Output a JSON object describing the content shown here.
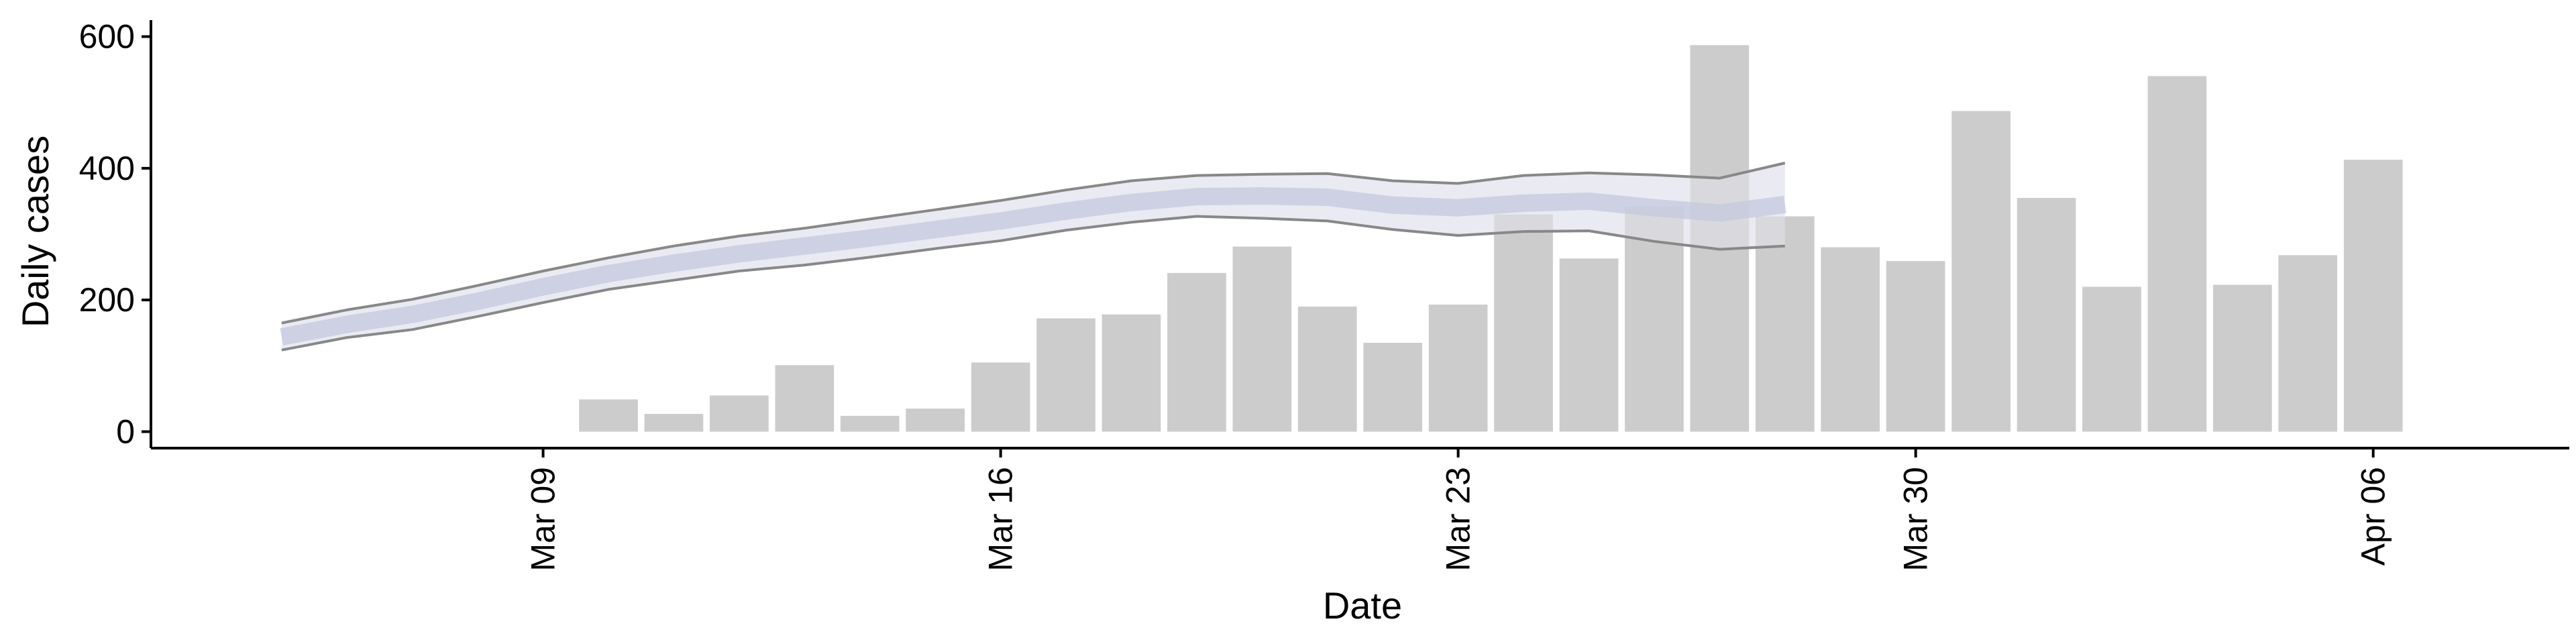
{
  "chart_data": {
    "type": "bar",
    "title": "",
    "xlabel": "Date",
    "ylabel": "Daily cases",
    "x_axis": "date",
    "xlim": [
      "2025-03-03",
      "2025-04-09"
    ],
    "ylim": [
      -25,
      625
    ],
    "y_ticks": [
      0,
      200,
      400,
      600
    ],
    "x_ticks": [
      {
        "date": "2025-03-09",
        "label": "Mar 09"
      },
      {
        "date": "2025-03-16",
        "label": "Mar 16"
      },
      {
        "date": "2025-03-23",
        "label": "Mar 23"
      },
      {
        "date": "2025-03-30",
        "label": "Mar 30"
      },
      {
        "date": "2025-04-06",
        "label": "Apr 06"
      }
    ],
    "grid": false,
    "legend": "none",
    "colors": {
      "bars": "#cccccc",
      "band": "#e8e9f2",
      "band_bounds": "#888888",
      "mid_line": "#c3c8dd",
      "axis": "#000000"
    },
    "bars": {
      "name": "",
      "x": [
        "2025-03-10",
        "2025-03-11",
        "2025-03-12",
        "2025-03-13",
        "2025-03-14",
        "2025-03-15",
        "2025-03-16",
        "2025-03-17",
        "2025-03-18",
        "2025-03-19",
        "2025-03-20",
        "2025-03-21",
        "2025-03-22",
        "2025-03-23",
        "2025-03-24",
        "2025-03-25",
        "2025-03-26",
        "2025-03-27",
        "2025-03-28",
        "2025-03-29",
        "2025-03-30",
        "2025-03-31",
        "2025-04-01",
        "2025-04-02",
        "2025-04-03",
        "2025-04-04",
        "2025-04-05",
        "2025-04-06"
      ],
      "values": [
        49,
        27,
        55,
        101,
        24,
        35,
        105,
        172,
        178,
        241,
        281,
        190,
        135,
        193,
        330,
        263,
        342,
        587,
        327,
        280,
        259,
        487,
        355,
        220,
        540,
        223,
        268,
        413
      ]
    },
    "band": {
      "x": [
        "2025-03-05",
        "2025-03-06",
        "2025-03-07",
        "2025-03-08",
        "2025-03-09",
        "2025-03-10",
        "2025-03-11",
        "2025-03-12",
        "2025-03-13",
        "2025-03-14",
        "2025-03-15",
        "2025-03-16",
        "2025-03-17",
        "2025-03-18",
        "2025-03-19",
        "2025-03-20",
        "2025-03-21",
        "2025-03-22",
        "2025-03-23",
        "2025-03-24",
        "2025-03-25",
        "2025-03-26",
        "2025-03-27",
        "2025-03-28"
      ],
      "lower": [
        124,
        143,
        155,
        175,
        196,
        216,
        230,
        244,
        253,
        265,
        278,
        290,
        306,
        318,
        327,
        324,
        320,
        307,
        298,
        304,
        305,
        289,
        277,
        282
      ],
      "mid": [
        144,
        163,
        178,
        198,
        220,
        240,
        256,
        270,
        282,
        294,
        307,
        320,
        335,
        348,
        357,
        358,
        356,
        344,
        340,
        347,
        350,
        340,
        332,
        345
      ],
      "upper": [
        165,
        185,
        201,
        222,
        244,
        264,
        282,
        297,
        309,
        323,
        337,
        351,
        367,
        381,
        389,
        391,
        392,
        381,
        377,
        389,
        393,
        390,
        385,
        408
      ]
    }
  }
}
